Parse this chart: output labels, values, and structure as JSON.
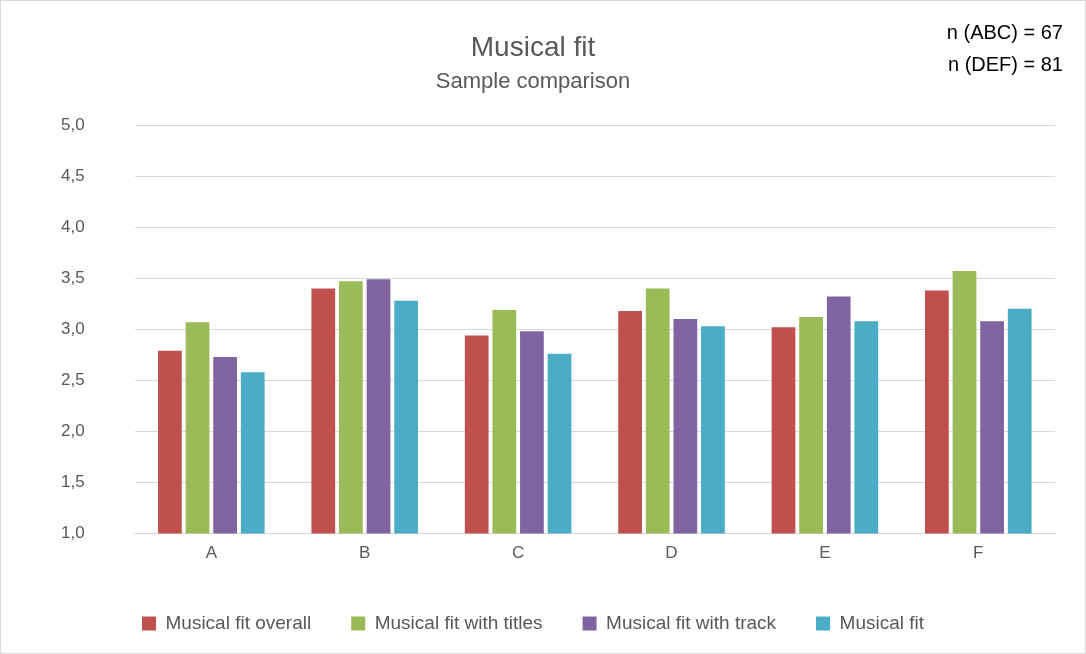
{
  "chart_data": {
    "type": "bar",
    "title": "Musical fit",
    "subtitle": "Sample comparison",
    "categories": [
      "A",
      "B",
      "C",
      "D",
      "E",
      "F"
    ],
    "series": [
      {
        "name": "Musical fit overall",
        "color": "#c0504d",
        "values": [
          2.79,
          3.4,
          2.94,
          3.18,
          3.02,
          3.38
        ]
      },
      {
        "name": "Musical fit with titles",
        "color": "#9bbb59",
        "values": [
          3.07,
          3.47,
          3.19,
          3.4,
          3.12,
          3.57
        ]
      },
      {
        "name": "Musical fit with track",
        "color": "#8064a2",
        "values": [
          2.73,
          3.49,
          2.98,
          3.1,
          3.32,
          3.08
        ]
      },
      {
        "name": "Musical fit",
        "color": "#4bacc6",
        "values": [
          2.58,
          3.28,
          2.76,
          3.03,
          3.08,
          3.2
        ]
      }
    ],
    "ylim": [
      1,
      5
    ],
    "yticks": [
      {
        "value": 1,
        "label": "1,0"
      },
      {
        "value": 1.5,
        "label": "1,5"
      },
      {
        "value": 2,
        "label": "2,0"
      },
      {
        "value": 2.5,
        "label": "2,5"
      },
      {
        "value": 3,
        "label": "3,0"
      },
      {
        "value": 3.5,
        "label": "3,5"
      },
      {
        "value": 4,
        "label": "4,0"
      },
      {
        "value": 4.5,
        "label": "4,5"
      },
      {
        "value": 5,
        "label": "5,0"
      }
    ],
    "grid": "y",
    "legend": "bottom",
    "annotations": [
      "n (ABC) = 67",
      "n (DEF) = 81"
    ]
  }
}
